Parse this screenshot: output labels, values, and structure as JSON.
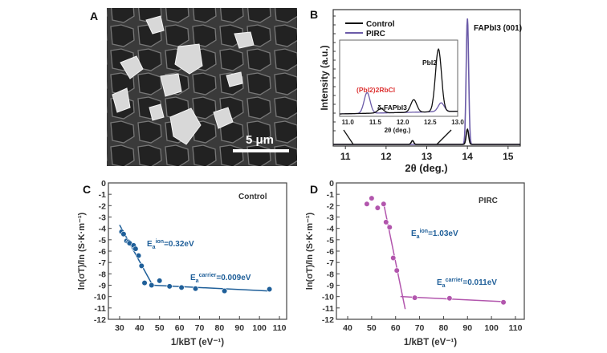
{
  "panels": {
    "a": "A",
    "b": "B",
    "c": "C",
    "d": "D"
  },
  "sem": {
    "scale_bar": "5 μm"
  },
  "chart_data": [
    {
      "panel": "B",
      "type": "line",
      "xlabel": "2θ (deg.)",
      "ylabel": "Intensity (a.u.)",
      "xlim": [
        10.7,
        15.3
      ],
      "xticks": [
        "11",
        "12",
        "13",
        "14",
        "15"
      ],
      "legend": [
        "Control",
        "PIRC"
      ],
      "legend_position": "top-left",
      "series_colors": {
        "Control": "#111111",
        "PIRC": "#6b5ba8"
      },
      "annotations": {
        "main_peak": "FAPbI3 (001)",
        "pbi2": "PbI2",
        "rbcl": "(PbI2)2RbCl",
        "delta": "δ-FAPbI3"
      },
      "peaks": {
        "Control": [
          {
            "x": 14.0,
            "h": 0.12
          },
          {
            "x": 12.65,
            "h": 0.03
          }
        ],
        "PIRC": [
          {
            "x": 14.0,
            "h": 1.0
          }
        ]
      },
      "inset": {
        "xlabel": "2θ (deg.)",
        "xlim": [
          10.85,
          13.0
        ],
        "xticks": [
          "11.0",
          "11.5",
          "12.0",
          "12.5",
          "13.0"
        ],
        "peaks": {
          "Control": [
            {
              "x": 11.6,
              "h": 0.07
            },
            {
              "x": 12.2,
              "h": 0.2
            },
            {
              "x": 12.65,
              "h": 1.0
            }
          ],
          "PIRC": [
            {
              "x": 11.35,
              "h": 0.33
            },
            {
              "x": 12.7,
              "h": 0.14
            }
          ]
        }
      }
    },
    {
      "panel": "C",
      "type": "scatter",
      "title": "Control",
      "color": "#1f5f99",
      "xlabel": "1/kBT (eV⁻¹)",
      "ylabel": "ln(σT)/ln (S·K·m⁻¹)",
      "xlim": [
        24.4,
        113.6
      ],
      "ylim": [
        -12,
        0
      ],
      "xticks": [
        30,
        40,
        50,
        60,
        70,
        80,
        90,
        100,
        110
      ],
      "yticks": [
        0,
        -1,
        -2,
        -3,
        -4,
        -5,
        -6,
        -7,
        -8,
        -9,
        -10,
        -11,
        -12
      ],
      "points": [
        [
          31,
          -4.3
        ],
        [
          32,
          -4.5
        ],
        [
          33.5,
          -5.1
        ],
        [
          34.5,
          -5.2
        ],
        [
          35,
          -5.3
        ],
        [
          37,
          -5.5
        ],
        [
          38,
          -5.8
        ],
        [
          39.5,
          -6.4
        ],
        [
          41,
          -7.3
        ],
        [
          42.5,
          -8.8
        ],
        [
          46,
          -9.0
        ],
        [
          50,
          -8.6
        ],
        [
          55,
          -9.1
        ],
        [
          61,
          -9.2
        ],
        [
          68,
          -9.3
        ],
        [
          82.5,
          -9.5
        ],
        [
          105,
          -9.35
        ]
      ],
      "fits": [
        [
          [
            30,
            -3.7
          ],
          [
            46.5,
            -9.0
          ]
        ],
        [
          [
            46.5,
            -9.0
          ],
          [
            104,
            -9.5
          ]
        ]
      ],
      "ion_label": "=0.32eV",
      "carrier_label": "=0.009eV"
    },
    {
      "panel": "D",
      "type": "scatter",
      "title": "PIRC",
      "color": "#b256ad",
      "xlabel": "1/kBT (eV⁻¹)",
      "ylabel": "ln(σT)/ln (S·K·m⁻¹)",
      "xlim": [
        35.3,
        113.7
      ],
      "ylim": [
        -12,
        0
      ],
      "xticks": [
        40,
        50,
        60,
        70,
        80,
        90,
        100,
        110
      ],
      "yticks": [
        0,
        -1,
        -2,
        -3,
        -4,
        -5,
        -6,
        -7,
        -8,
        -9,
        -10,
        -11,
        -12
      ],
      "points": [
        [
          48,
          -1.85
        ],
        [
          50,
          -1.35
        ],
        [
          52.5,
          -2.2
        ],
        [
          55,
          -1.85
        ],
        [
          56,
          -3.45
        ],
        [
          57.5,
          -3.9
        ],
        [
          59,
          -6.6
        ],
        [
          60.5,
          -7.7
        ],
        [
          68,
          -10.1
        ],
        [
          82.5,
          -10.15
        ],
        [
          105,
          -10.5
        ]
      ],
      "fits": [
        [
          [
            55,
            -1.8
          ],
          [
            64,
            -11.1
          ]
        ],
        [
          [
            62,
            -10.0
          ],
          [
            105,
            -10.45
          ]
        ]
      ],
      "ion_label": "=1.03eV",
      "carrier_label": "=0.011eV"
    }
  ]
}
